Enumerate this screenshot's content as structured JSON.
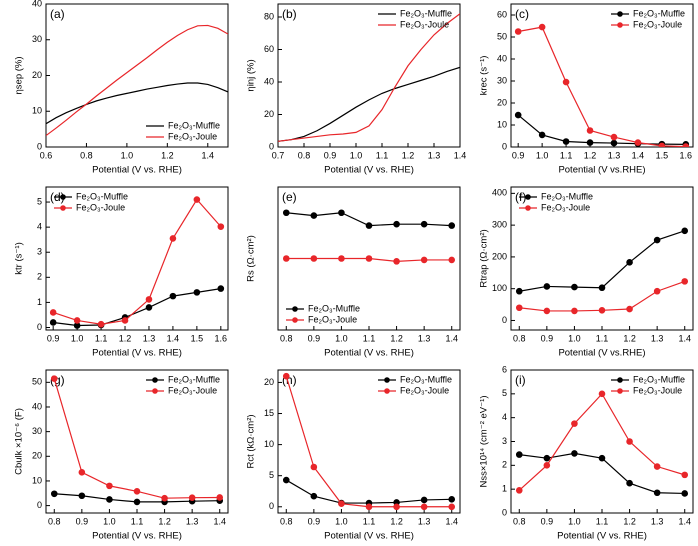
{
  "chart_data": [
    {
      "type": "line",
      "panel": "(a)",
      "ylabel": "ηsep (%)",
      "xlabel": "Potential (V vs. RHE)",
      "legend": "bottom-right",
      "markers": false,
      "xlim": [
        0.6,
        1.5
      ],
      "xticks": [
        0.6,
        0.8,
        {
          "value": 1,
          "label": "1.0"
        },
        1.2,
        1.4
      ],
      "ylim": [
        0,
        40
      ],
      "yticks": [
        0,
        10,
        20,
        30,
        40
      ],
      "x": [
        0.6,
        0.65,
        0.7,
        0.75,
        0.8,
        0.85,
        0.9,
        0.95,
        1.0,
        1.05,
        1.1,
        1.15,
        1.2,
        1.25,
        1.3,
        1.35,
        1.4,
        1.45,
        1.5
      ],
      "series": [
        {
          "name": "Fe₂O₃-Muffle",
          "color": "#000000",
          "values": [
            6.5,
            8.2,
            9.6,
            10.8,
            11.9,
            12.9,
            13.7,
            14.4,
            15.0,
            15.6,
            16.2,
            16.7,
            17.2,
            17.6,
            17.9,
            17.9,
            17.5,
            16.6,
            15.4
          ]
        },
        {
          "name": "Fe₂O₃-Joule",
          "color": "#e8262a",
          "values": [
            3.2,
            5.3,
            7.5,
            9.8,
            12.0,
            14.3,
            16.5,
            18.7,
            20.8,
            22.9,
            25.0,
            27.2,
            29.3,
            31.2,
            32.8,
            33.9,
            34.0,
            33.2,
            31.6
          ]
        }
      ]
    },
    {
      "type": "line",
      "panel": "(b)",
      "ylabel": "ηinj (%)",
      "xlabel": "Potential (V vs. RHE)",
      "legend": "top-right",
      "markers": false,
      "xlim": [
        0.7,
        1.4
      ],
      "xticks": [
        0.7,
        0.8,
        0.9,
        {
          "value": 1,
          "label": "1.0"
        },
        1.1,
        1.2,
        1.3,
        1.4
      ],
      "ylim": [
        0,
        88
      ],
      "yticks": [
        0,
        20,
        40,
        60,
        80
      ],
      "x": [
        0.7,
        0.75,
        0.8,
        0.85,
        0.9,
        0.95,
        1.0,
        1.05,
        1.1,
        1.15,
        1.2,
        1.25,
        1.3,
        1.35,
        1.4
      ],
      "series": [
        {
          "name": "Fe₂O₃-Muffle",
          "color": "#000000",
          "values": [
            3.5,
            4.5,
            6.5,
            10,
            14.5,
            19.5,
            24.5,
            29,
            33,
            36,
            38.5,
            41,
            43.5,
            46.5,
            49
          ]
        },
        {
          "name": "Fe₂O₃-Joule",
          "color": "#e8262a",
          "values": [
            3.5,
            4.5,
            5.5,
            6.5,
            7.5,
            8,
            9,
            13,
            23,
            37,
            50,
            60,
            69,
            76,
            82
          ]
        }
      ]
    },
    {
      "type": "line",
      "panel": "(c)",
      "ylabel": "krec (s⁻¹)",
      "xlabel": "Potential (V vs.RHE)",
      "legend": "top-right",
      "markers": true,
      "xlim": [
        0.87,
        1.63
      ],
      "xticks": [
        0.9,
        {
          "value": 1,
          "label": "1.0"
        },
        1.1,
        1.2,
        1.3,
        1.4,
        1.5,
        1.6
      ],
      "ylim": [
        0,
        65
      ],
      "yticks": [
        0,
        10,
        20,
        30,
        40,
        50,
        60
      ],
      "x": [
        0.9,
        1.0,
        1.1,
        1.2,
        1.3,
        1.4,
        1.5,
        1.6
      ],
      "series": [
        {
          "name": "Fe₂O₃-Muffle",
          "color": "#000000",
          "values": [
            14.5,
            5.5,
            2.5,
            2,
            1.8,
            1.5,
            1.3,
            1.2
          ]
        },
        {
          "name": "Fe₂O₃-Joule",
          "color": "#e8262a",
          "values": [
            52.5,
            54.5,
            29.5,
            7.5,
            4.5,
            2,
            0.5,
            0.2
          ]
        }
      ]
    },
    {
      "type": "line",
      "panel": "(d)",
      "ylabel": "ktr (s⁻¹)",
      "xlabel": "Potential (V vs. RHE)",
      "legend": "top-left",
      "markers": true,
      "xlim": [
        0.87,
        1.63
      ],
      "xticks": [
        0.9,
        {
          "value": 1,
          "label": "1.0"
        },
        1.1,
        1.2,
        1.3,
        1.4,
        1.5,
        1.6
      ],
      "ylim": [
        -0.1,
        5.6
      ],
      "yticks": [
        0,
        1,
        2,
        3,
        4,
        5
      ],
      "x": [
        0.9,
        1.0,
        1.1,
        1.2,
        1.3,
        1.4,
        1.5,
        1.6
      ],
      "series": [
        {
          "name": "Fe₂O₃-Muffle",
          "color": "#000000",
          "values": [
            0.2,
            0.08,
            0.1,
            0.4,
            0.8,
            1.25,
            1.4,
            1.55
          ]
        },
        {
          "name": "Fe₂O₃-Joule",
          "color": "#e8262a",
          "values": [
            0.6,
            0.28,
            0.13,
            0.28,
            1.12,
            3.55,
            5.1,
            4.02
          ]
        }
      ]
    },
    {
      "type": "line",
      "panel": "(e)",
      "ylabel": "Rs (Ω·cm²)",
      "xlabel": "Potential (V vs. RHE)",
      "legend": "bottom-left",
      "markers": true,
      "xlim": [
        0.77,
        1.43
      ],
      "xticks": [
        0.8,
        0.9,
        {
          "value": 1,
          "label": "1.0"
        },
        1.1,
        1.2,
        1.3,
        1.4
      ],
      "ylim": [
        1,
        6
      ],
      "yticks": [],
      "x": [
        0.8,
        0.9,
        1.0,
        1.1,
        1.2,
        1.3,
        1.4
      ],
      "series": [
        {
          "name": "Fe₂O₃-Muffle",
          "color": "#000000",
          "values": [
            5.1,
            5.0,
            5.1,
            4.65,
            4.7,
            4.7,
            4.65
          ]
        },
        {
          "name": "Fe₂O₃-Joule",
          "color": "#e8262a",
          "values": [
            3.5,
            3.5,
            3.5,
            3.5,
            3.4,
            3.45,
            3.45
          ]
        }
      ]
    },
    {
      "type": "line",
      "panel": "(f)",
      "ylabel": "Rtrap (Ω·cm²)",
      "xlabel": "Potential (V vs.RHE)",
      "legend": "top-left",
      "markers": true,
      "xlim": [
        0.77,
        1.43
      ],
      "xticks": [
        0.8,
        0.9,
        {
          "value": 1,
          "label": "1.0"
        },
        1.1,
        1.2,
        1.3,
        1.4
      ],
      "ylim": [
        -30,
        420
      ],
      "yticks": [
        0,
        100,
        200,
        300,
        400
      ],
      "x": [
        0.8,
        0.9,
        1.0,
        1.1,
        1.2,
        1.3,
        1.4
      ],
      "series": [
        {
          "name": "Fe₂O₃-Muffle",
          "color": "#000000",
          "values": [
            92,
            107,
            105,
            103,
            183,
            253,
            282
          ]
        },
        {
          "name": "Fe₂O₃-Joule",
          "color": "#e8262a",
          "values": [
            40,
            30,
            30,
            32,
            36,
            92,
            123
          ]
        }
      ]
    },
    {
      "type": "line",
      "panel": "(g)",
      "ylabel": "Cbulk ×10⁻⁶ (F)",
      "xlabel": "Potential (V vs. RHE)",
      "legend": "top-right",
      "markers": true,
      "xlim": [
        0.77,
        1.43
      ],
      "xticks": [
        0.8,
        0.9,
        {
          "value": 1,
          "label": "1.0"
        },
        1.1,
        1.2,
        1.3,
        1.4
      ],
      "ylim": [
        -3,
        55
      ],
      "yticks": [
        0,
        10,
        20,
        30,
        40,
        50
      ],
      "x": [
        0.8,
        0.9,
        1.0,
        1.1,
        1.2,
        1.3,
        1.4
      ],
      "series": [
        {
          "name": "Fe₂O₃-Muffle",
          "color": "#000000",
          "values": [
            4.8,
            4,
            2.5,
            1.5,
            1.5,
            1.8,
            2
          ]
        },
        {
          "name": "Fe₂O₃-Joule",
          "color": "#e8262a",
          "values": [
            51.5,
            13.5,
            8,
            5.8,
            3,
            3.2,
            3.3
          ]
        }
      ]
    },
    {
      "type": "line",
      "panel": "(h)",
      "ylabel": "Rct (kΩ·cm²)",
      "xlabel": "Potential (V vs. RHE)",
      "legend": "top-right",
      "markers": true,
      "xlim": [
        0.77,
        1.43
      ],
      "xticks": [
        0.8,
        0.9,
        {
          "value": 1,
          "label": "1.0"
        },
        1.1,
        1.2,
        1.3,
        1.4
      ],
      "ylim": [
        -1,
        22
      ],
      "yticks": [
        0,
        5,
        10,
        15,
        20
      ],
      "x": [
        0.8,
        0.9,
        1.0,
        1.1,
        1.2,
        1.3,
        1.4
      ],
      "series": [
        {
          "name": "Fe₂O₃-Muffle",
          "color": "#000000",
          "values": [
            4.3,
            1.7,
            0.6,
            0.6,
            0.7,
            1.1,
            1.2
          ]
        },
        {
          "name": "Fe₂O₃-Joule",
          "color": "#e8262a",
          "values": [
            21,
            6.4,
            0.5,
            0,
            0,
            0,
            0
          ]
        }
      ]
    },
    {
      "type": "line",
      "panel": "(i)",
      "ylabel": "Nss×10¹⁴ (cm⁻² eV⁻¹)",
      "xlabel": "Potential (V vs. RHE)",
      "legend": "top-right",
      "markers": true,
      "xlim": [
        0.77,
        1.43
      ],
      "xticks": [
        0.8,
        0.9,
        {
          "value": 1,
          "label": "1.0"
        },
        1.1,
        1.2,
        1.3,
        1.4
      ],
      "ylim": [
        0,
        6
      ],
      "yticks": [
        0,
        1,
        2,
        3,
        4,
        5,
        6
      ],
      "x": [
        0.8,
        0.9,
        1.0,
        1.1,
        1.2,
        1.3,
        1.4
      ],
      "series": [
        {
          "name": "Fe₂O₃-Muffle",
          "color": "#000000",
          "values": [
            2.45,
            2.3,
            2.5,
            2.3,
            1.25,
            0.85,
            0.82
          ]
        },
        {
          "name": "Fe₂O₃-Joule",
          "color": "#e8262a",
          "values": [
            0.95,
            2.0,
            3.75,
            5.0,
            3.0,
            1.95,
            1.6
          ]
        }
      ]
    }
  ]
}
